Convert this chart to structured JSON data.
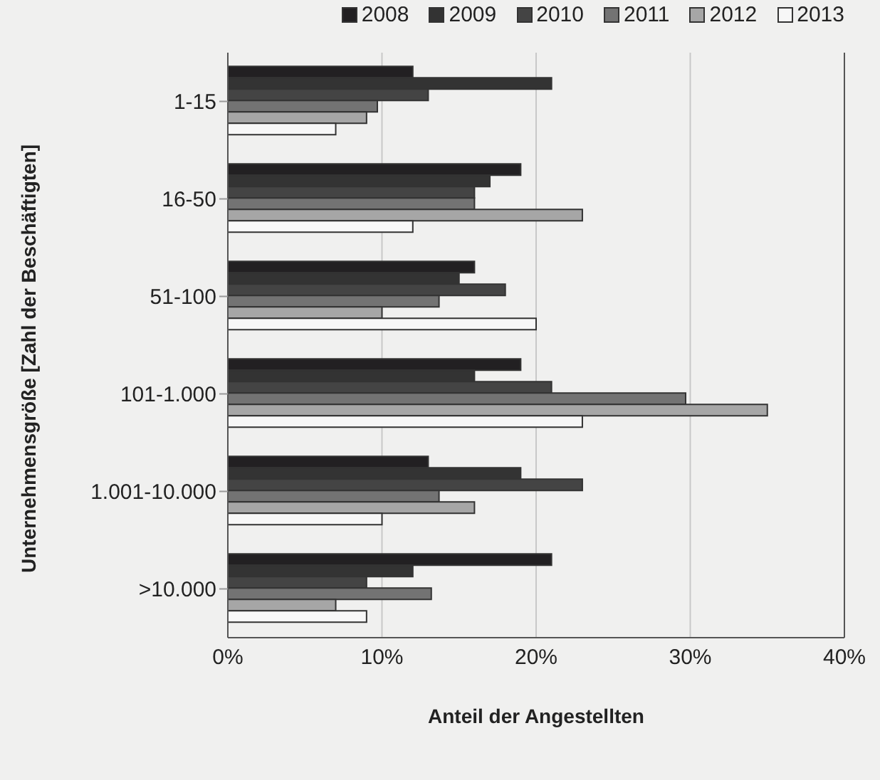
{
  "chart_data": {
    "type": "bar",
    "orientation": "horizontal",
    "xlabel": "Anteil der Angestellten",
    "ylabel": "Unternehmensgröße [Zahl der Beschäftigten]",
    "categories": [
      "1-15",
      "16-50",
      "51-100",
      "101-1.000",
      "1.001-10.000",
      ">10.000"
    ],
    "series": [
      {
        "name": "2008",
        "color": "#222022",
        "values": [
          12,
          19,
          16,
          19,
          13,
          21
        ]
      },
      {
        "name": "2009",
        "color": "#333333",
        "values": [
          21,
          17,
          15,
          16,
          19,
          12
        ]
      },
      {
        "name": "2010",
        "color": "#444444",
        "values": [
          13,
          16,
          18,
          21,
          23,
          9
        ]
      },
      {
        "name": "2011",
        "color": "#737373",
        "values": [
          9.7,
          16,
          13.7,
          29.7,
          13.7,
          13.2
        ]
      },
      {
        "name": "2012",
        "color": "#a6a6a6",
        "values": [
          9,
          23,
          10,
          35,
          16,
          7
        ]
      },
      {
        "name": "2013",
        "color": "#f7f7f7",
        "values": [
          7,
          12,
          20,
          23,
          10,
          9
        ]
      }
    ],
    "xlim": [
      0,
      40
    ],
    "xticks": [
      {
        "value": 0,
        "label": "0%"
      },
      {
        "value": 10,
        "label": "10%"
      },
      {
        "value": 20,
        "label": "20%"
      },
      {
        "value": 30,
        "label": "30%"
      },
      {
        "value": 40,
        "label": "40%"
      }
    ],
    "grid": "x",
    "legend": "top right"
  }
}
